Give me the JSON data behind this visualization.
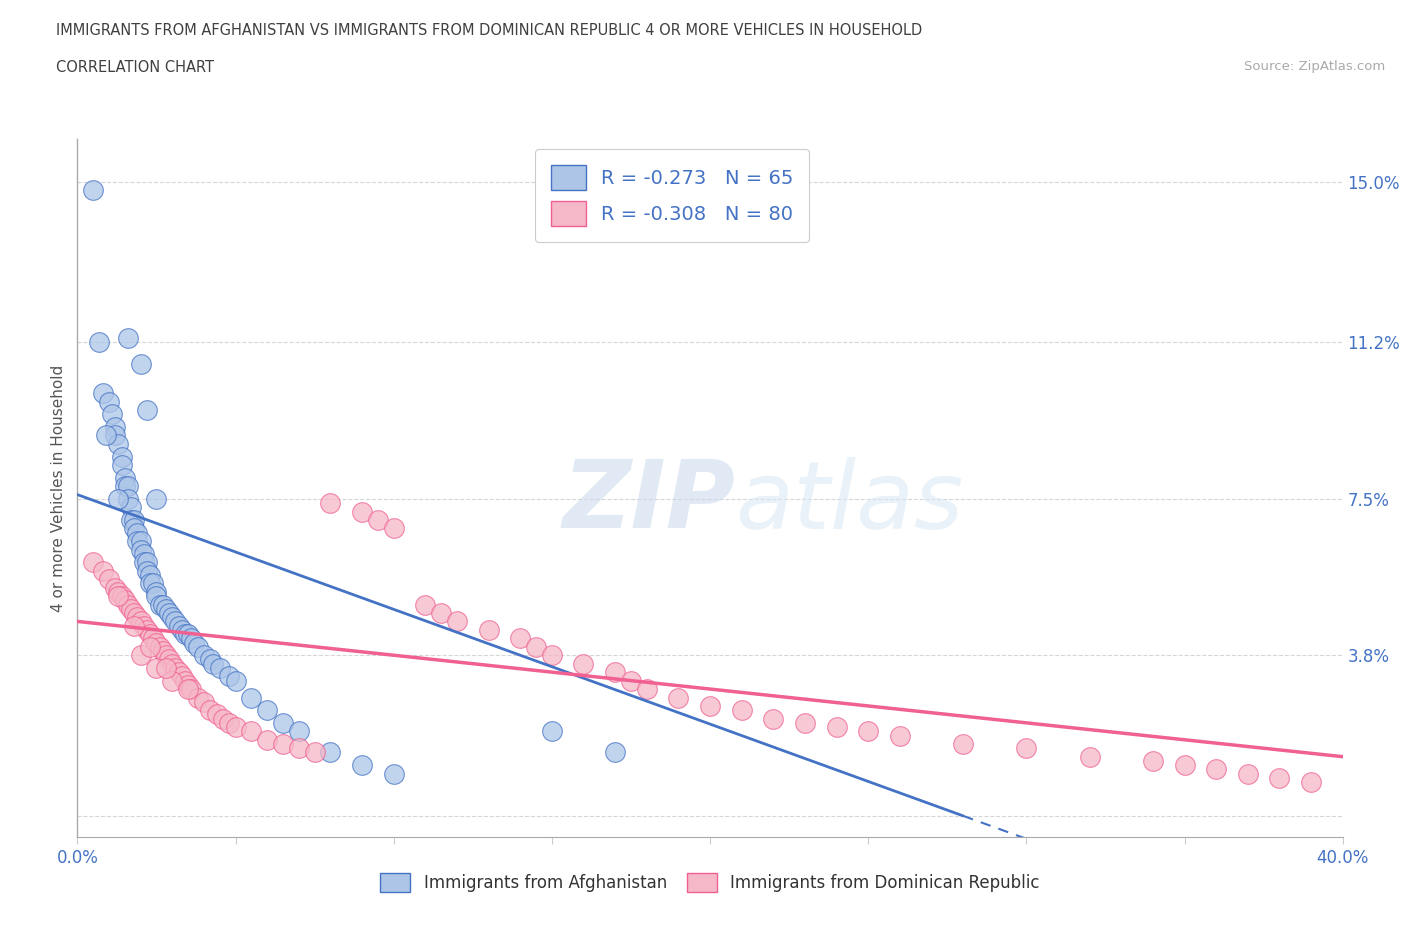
{
  "title_line1": "IMMIGRANTS FROM AFGHANISTAN VS IMMIGRANTS FROM DOMINICAN REPUBLIC 4 OR MORE VEHICLES IN HOUSEHOLD",
  "title_line2": "CORRELATION CHART",
  "source_text": "Source: ZipAtlas.com",
  "ylabel_label": "4 or more Vehicles in Household",
  "legend_label1": "Immigrants from Afghanistan",
  "legend_label2": "Immigrants from Dominican Republic",
  "r1": -0.273,
  "n1": 65,
  "r2": -0.308,
  "n2": 80,
  "ytick_labels": [
    "",
    "3.8%",
    "7.5%",
    "11.2%",
    "15.0%"
  ],
  "ytick_values": [
    0.0,
    0.038,
    0.075,
    0.112,
    0.15
  ],
  "xlim": [
    0.0,
    0.4
  ],
  "ylim": [
    -0.005,
    0.16
  ],
  "color_afghanistan": "#adc6e8",
  "color_domrep": "#f5b8c8",
  "color_line_afghanistan": "#4472c4",
  "color_line_domrep": "#f06090",
  "color_text_blue": "#4472c4",
  "color_title": "#404040",
  "watermark_color": "#ddeeff",
  "afghanistan_x": [
    0.005,
    0.007,
    0.008,
    0.01,
    0.011,
    0.012,
    0.012,
    0.013,
    0.014,
    0.014,
    0.015,
    0.015,
    0.016,
    0.016,
    0.017,
    0.017,
    0.018,
    0.018,
    0.019,
    0.019,
    0.02,
    0.02,
    0.021,
    0.021,
    0.022,
    0.022,
    0.023,
    0.023,
    0.024,
    0.025,
    0.025,
    0.026,
    0.027,
    0.028,
    0.029,
    0.03,
    0.031,
    0.032,
    0.033,
    0.034,
    0.035,
    0.036,
    0.037,
    0.038,
    0.04,
    0.042,
    0.043,
    0.045,
    0.048,
    0.05,
    0.055,
    0.06,
    0.065,
    0.07,
    0.08,
    0.09,
    0.1,
    0.009,
    0.013,
    0.016,
    0.02,
    0.022,
    0.025,
    0.15,
    0.17
  ],
  "afghanistan_y": [
    0.148,
    0.112,
    0.1,
    0.098,
    0.095,
    0.092,
    0.09,
    0.088,
    0.085,
    0.083,
    0.08,
    0.078,
    0.078,
    0.075,
    0.073,
    0.07,
    0.07,
    0.068,
    0.067,
    0.065,
    0.065,
    0.063,
    0.062,
    0.06,
    0.06,
    0.058,
    0.057,
    0.055,
    0.055,
    0.053,
    0.052,
    0.05,
    0.05,
    0.049,
    0.048,
    0.047,
    0.046,
    0.045,
    0.044,
    0.043,
    0.043,
    0.042,
    0.041,
    0.04,
    0.038,
    0.037,
    0.036,
    0.035,
    0.033,
    0.032,
    0.028,
    0.025,
    0.022,
    0.02,
    0.015,
    0.012,
    0.01,
    0.09,
    0.075,
    0.113,
    0.107,
    0.096,
    0.075,
    0.02,
    0.015
  ],
  "domrep_x": [
    0.005,
    0.008,
    0.01,
    0.012,
    0.013,
    0.014,
    0.015,
    0.016,
    0.017,
    0.018,
    0.019,
    0.02,
    0.021,
    0.022,
    0.023,
    0.024,
    0.025,
    0.026,
    0.027,
    0.028,
    0.029,
    0.03,
    0.031,
    0.032,
    0.033,
    0.034,
    0.035,
    0.036,
    0.038,
    0.04,
    0.042,
    0.044,
    0.046,
    0.048,
    0.05,
    0.055,
    0.06,
    0.065,
    0.07,
    0.075,
    0.08,
    0.09,
    0.095,
    0.1,
    0.11,
    0.115,
    0.12,
    0.13,
    0.14,
    0.145,
    0.15,
    0.16,
    0.17,
    0.175,
    0.18,
    0.19,
    0.2,
    0.21,
    0.22,
    0.23,
    0.24,
    0.25,
    0.26,
    0.28,
    0.3,
    0.32,
    0.34,
    0.35,
    0.36,
    0.37,
    0.38,
    0.39,
    0.02,
    0.025,
    0.03,
    0.035,
    0.013,
    0.018,
    0.023,
    0.028
  ],
  "domrep_y": [
    0.06,
    0.058,
    0.056,
    0.054,
    0.053,
    0.052,
    0.051,
    0.05,
    0.049,
    0.048,
    0.047,
    0.046,
    0.045,
    0.044,
    0.043,
    0.042,
    0.041,
    0.04,
    0.039,
    0.038,
    0.037,
    0.036,
    0.035,
    0.034,
    0.033,
    0.032,
    0.031,
    0.03,
    0.028,
    0.027,
    0.025,
    0.024,
    0.023,
    0.022,
    0.021,
    0.02,
    0.018,
    0.017,
    0.016,
    0.015,
    0.074,
    0.072,
    0.07,
    0.068,
    0.05,
    0.048,
    0.046,
    0.044,
    0.042,
    0.04,
    0.038,
    0.036,
    0.034,
    0.032,
    0.03,
    0.028,
    0.026,
    0.025,
    0.023,
    0.022,
    0.021,
    0.02,
    0.019,
    0.017,
    0.016,
    0.014,
    0.013,
    0.012,
    0.011,
    0.01,
    0.009,
    0.008,
    0.038,
    0.035,
    0.032,
    0.03,
    0.052,
    0.045,
    0.04,
    0.035
  ],
  "trend_afg_x0": 0.0,
  "trend_afg_y0": 0.076,
  "trend_afg_x1": 0.28,
  "trend_afg_y1": 0.0,
  "trend_dom_x0": 0.0,
  "trend_dom_y0": 0.046,
  "trend_dom_x1": 0.4,
  "trend_dom_y1": 0.014
}
